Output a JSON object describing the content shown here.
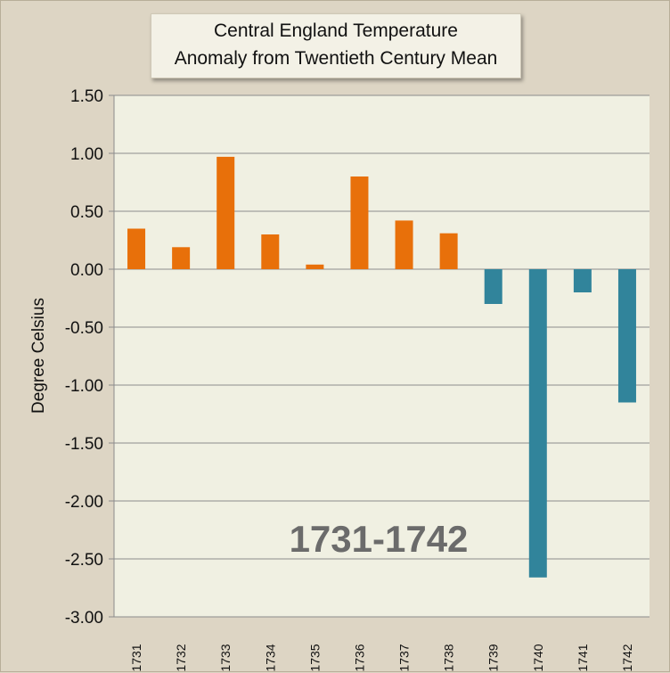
{
  "chart_data": {
    "type": "bar",
    "title": "Central England Temperature",
    "subtitle": "Anomaly from Twentieth Century Mean",
    "xlabel": "",
    "ylabel": "Degree Celsius",
    "annotation": "1731-1742",
    "categories": [
      "1731",
      "1732",
      "1733",
      "1734",
      "1735",
      "1736",
      "1737",
      "1738",
      "1739",
      "1740",
      "1741",
      "1742"
    ],
    "values": [
      0.35,
      0.19,
      0.97,
      0.3,
      0.04,
      0.8,
      0.42,
      0.31,
      -0.3,
      -2.66,
      -0.2,
      -1.15
    ],
    "ylim": [
      -3.0,
      1.5
    ],
    "yticks": [
      "1.50",
      "1.00",
      "0.50",
      "0.00",
      "-0.50",
      "-1.00",
      "-1.50",
      "-2.00",
      "-2.50",
      "-3.00"
    ],
    "ytick_values": [
      1.5,
      1.0,
      0.5,
      0.0,
      -0.5,
      -1.0,
      -1.5,
      -2.0,
      -2.5,
      -3.0
    ],
    "grid": true,
    "colors": {
      "positive": "#e8700a",
      "negative": "#31849b",
      "plot_bg": "#f0f0e2",
      "grid": "#8c8c8c"
    }
  }
}
